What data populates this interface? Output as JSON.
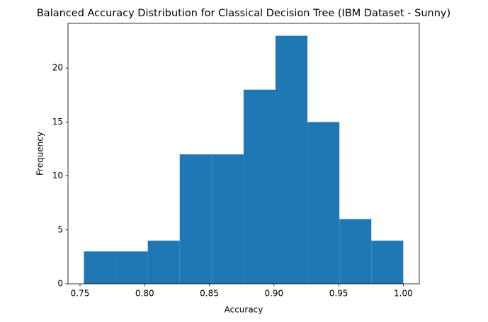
{
  "chart_data": {
    "type": "histogram",
    "title": "Balanced Accuracy Distribution for Classical Decision Tree (IBM Dataset - Sunny)",
    "x_label": "Accuracy",
    "y_label": "Frequency",
    "bins": [
      0.753,
      0.7777,
      0.8024,
      0.8271,
      0.8518,
      0.8765,
      0.9012,
      0.9259,
      0.9506,
      0.9753,
      1.0
    ],
    "values": [
      3,
      3,
      4,
      12,
      12,
      18,
      23,
      15,
      6,
      4
    ],
    "color": "#1f77b4",
    "xlim": [
      0.7407,
      1.0124
    ],
    "ylim": [
      0,
      24.15
    ],
    "xticks": [
      {
        "value": 0.75,
        "label": "0.75"
      },
      {
        "value": 0.8,
        "label": "0.80"
      },
      {
        "value": 0.85,
        "label": "0.85"
      },
      {
        "value": 0.9,
        "label": "0.90"
      },
      {
        "value": 0.95,
        "label": "0.95"
      },
      {
        "value": 1.0,
        "label": "1.00"
      }
    ],
    "yticks": [
      0,
      5,
      10,
      15,
      20
    ]
  }
}
